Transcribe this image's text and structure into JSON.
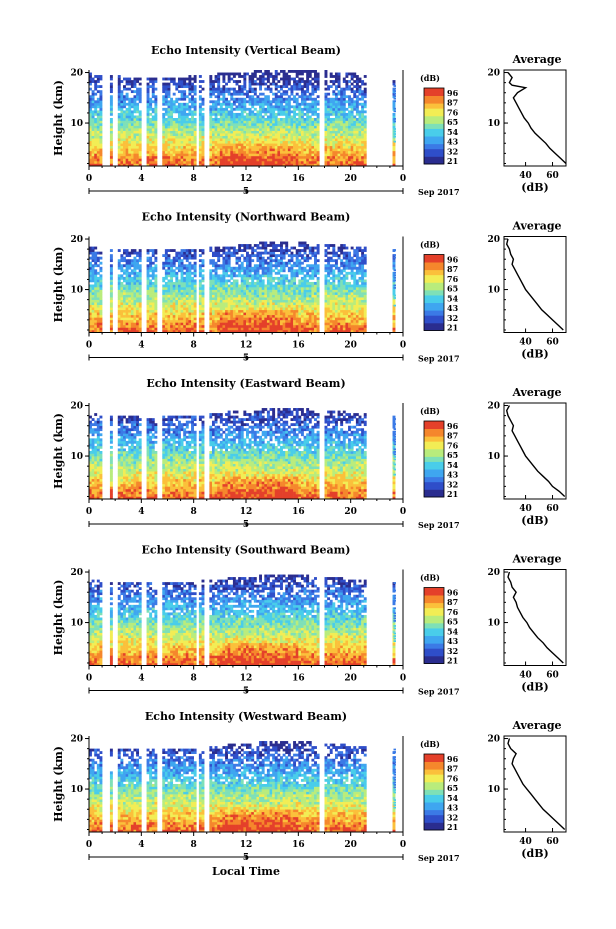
{
  "chart_data": [
    {
      "type": "heatmap",
      "title": "Echo Intensity (Vertical Beam)",
      "ylabel": "Height (km)",
      "xticks": [
        "0",
        "4",
        "8",
        "12",
        "16",
        "20",
        "0"
      ],
      "yticks": [
        "10",
        "20"
      ],
      "ylim": [
        1.5,
        20.5
      ],
      "xlim": [
        0,
        24
      ],
      "date_label": "5",
      "month_label": "Sep 2017",
      "colorbar": {
        "label": "(dB)",
        "ticks": [
          "96",
          "87",
          "76",
          "65",
          "54",
          "43",
          "32",
          "21"
        ],
        "range": [
          21,
          96
        ]
      },
      "average": {
        "title": "Average",
        "xlabel": "(dB)",
        "xticks": [
          "40",
          "60"
        ],
        "yticks": [
          "10",
          "20"
        ],
        "xlim": [
          24,
          70
        ],
        "heights": [
          2,
          3,
          4,
          5,
          6,
          7,
          8,
          9,
          10,
          11,
          12,
          13,
          14,
          15,
          16,
          17,
          17.5,
          18,
          19,
          20
        ],
        "values": [
          70,
          66,
          62,
          58,
          55,
          51,
          47,
          44,
          42,
          39,
          37,
          35,
          33,
          31,
          34,
          40,
          30,
          28,
          30,
          27
        ]
      }
    },
    {
      "type": "heatmap",
      "title": "Echo Intensity (Northward Beam)",
      "ylabel": "Height (km)",
      "xticks": [
        "0",
        "4",
        "8",
        "12",
        "16",
        "20",
        "0"
      ],
      "yticks": [
        "10",
        "20"
      ],
      "ylim": [
        1.5,
        20.5
      ],
      "xlim": [
        0,
        24
      ],
      "date_label": "5",
      "month_label": "Sep 2017",
      "colorbar": {
        "label": "(dB)",
        "ticks": [
          "96",
          "87",
          "76",
          "65",
          "54",
          "43",
          "32",
          "21"
        ],
        "range": [
          21,
          96
        ]
      },
      "average": {
        "title": "Average",
        "xlabel": "(dB)",
        "xticks": [
          "40",
          "60"
        ],
        "yticks": [
          "10",
          "20"
        ],
        "xlim": [
          24,
          70
        ],
        "heights": [
          2,
          3,
          4,
          5,
          6,
          7,
          8,
          9,
          10,
          11,
          12,
          13,
          14,
          15,
          16,
          17,
          18,
          19,
          20
        ],
        "values": [
          68,
          64,
          60,
          56,
          52,
          49,
          46,
          43,
          40,
          38,
          36,
          34,
          32,
          30,
          31,
          29,
          28,
          26,
          27
        ]
      }
    },
    {
      "type": "heatmap",
      "title": "Echo Intensity (Eastward Beam)",
      "ylabel": "Height (km)",
      "xticks": [
        "0",
        "4",
        "8",
        "12",
        "16",
        "20",
        "0"
      ],
      "yticks": [
        "10",
        "20"
      ],
      "ylim": [
        1.5,
        20.5
      ],
      "xlim": [
        0,
        24
      ],
      "date_label": "5",
      "month_label": "Sep 2017",
      "colorbar": {
        "label": "(dB)",
        "ticks": [
          "96",
          "87",
          "76",
          "65",
          "54",
          "43",
          "32",
          "21"
        ],
        "range": [
          21,
          96
        ]
      },
      "average": {
        "title": "Average",
        "xlabel": "(dB)",
        "xticks": [
          "40",
          "60"
        ],
        "yticks": [
          "10",
          "20"
        ],
        "xlim": [
          24,
          70
        ],
        "heights": [
          2,
          3,
          4,
          5,
          6,
          7,
          8,
          9,
          10,
          11,
          12,
          13,
          14,
          15,
          16,
          17,
          18,
          19,
          20
        ],
        "values": [
          69,
          65,
          60,
          57,
          53,
          49,
          46,
          43,
          40,
          38,
          36,
          34,
          32,
          30,
          31,
          29,
          27,
          26,
          28
        ]
      }
    },
    {
      "type": "heatmap",
      "title": "Echo Intensity (Southward Beam)",
      "ylabel": "Height (km)",
      "xticks": [
        "0",
        "4",
        "8",
        "12",
        "16",
        "20",
        "0"
      ],
      "yticks": [
        "10",
        "20"
      ],
      "ylim": [
        1.5,
        20.5
      ],
      "xlim": [
        0,
        24
      ],
      "date_label": "5",
      "month_label": "Sep 2017",
      "colorbar": {
        "label": "(dB)",
        "ticks": [
          "96",
          "87",
          "76",
          "65",
          "54",
          "43",
          "32",
          "21"
        ],
        "range": [
          21,
          96
        ]
      },
      "average": {
        "title": "Average",
        "xlabel": "(dB)",
        "xticks": [
          "40",
          "60"
        ],
        "yticks": [
          "10",
          "20"
        ],
        "xlim": [
          24,
          70
        ],
        "heights": [
          2,
          3,
          4,
          5,
          6,
          7,
          8,
          9,
          10,
          11,
          12,
          13,
          14,
          15,
          16,
          17,
          18,
          19,
          20
        ],
        "values": [
          68,
          64,
          60,
          56,
          53,
          49,
          46,
          43,
          41,
          38,
          36,
          34,
          33,
          31,
          33,
          30,
          29,
          27,
          28
        ]
      }
    },
    {
      "type": "heatmap",
      "title": "Echo Intensity (Westward Beam)",
      "ylabel": "Height (km)",
      "xlabel": "Local Time",
      "xticks": [
        "0",
        "4",
        "8",
        "12",
        "16",
        "20",
        "0"
      ],
      "yticks": [
        "10",
        "20"
      ],
      "ylim": [
        1.5,
        20.5
      ],
      "xlim": [
        0,
        24
      ],
      "date_label": "5",
      "month_label": "Sep 2017",
      "colorbar": {
        "label": "(dB)",
        "ticks": [
          "96",
          "87",
          "76",
          "65",
          "54",
          "43",
          "32",
          "21"
        ],
        "range": [
          21,
          96
        ]
      },
      "average": {
        "title": "Average",
        "xlabel": "(dB)",
        "xticks": [
          "40",
          "60"
        ],
        "yticks": [
          "10",
          "20"
        ],
        "xlim": [
          24,
          70
        ],
        "heights": [
          2,
          3,
          4,
          5,
          6,
          7,
          8,
          9,
          10,
          11,
          12,
          13,
          14,
          15,
          16,
          17,
          18,
          19,
          20
        ],
        "values": [
          69,
          65,
          61,
          57,
          53,
          50,
          47,
          44,
          41,
          38,
          36,
          34,
          32,
          30,
          31,
          33,
          29,
          27,
          28
        ]
      }
    }
  ],
  "data_gaps_hours": [
    [
      0.9,
      1.6
    ],
    [
      1.9,
      2.1
    ],
    [
      4.1,
      4.4
    ],
    [
      5.2,
      5.6
    ],
    [
      8.2,
      8.4
    ],
    [
      8.8,
      9.1
    ],
    [
      17.6,
      17.9
    ],
    [
      21.2,
      23.2
    ],
    [
      23.45,
      24.0
    ]
  ],
  "colormap": [
    "#2a2d8f",
    "#2f4ec9",
    "#3b7ae6",
    "#3fa6f0",
    "#49cdea",
    "#7ee0b7",
    "#b9ec7c",
    "#f2ed55",
    "#fbc03b",
    "#f5872c",
    "#e4402a"
  ]
}
